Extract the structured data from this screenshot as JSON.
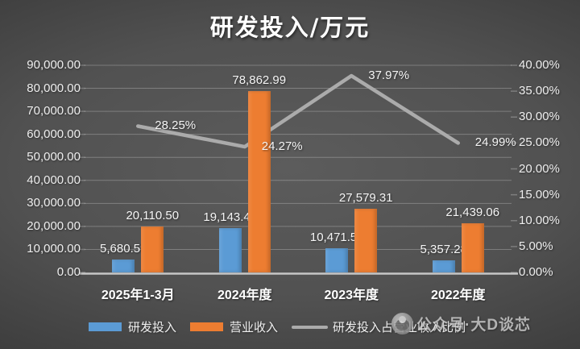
{
  "chart_data": {
    "type": "combo",
    "title": "研发投入/万元",
    "categories": [
      "2025年1-3月",
      "2024年度",
      "2023年度",
      "2022年度"
    ],
    "series": [
      {
        "name": "研发投入",
        "chart_type": "bar",
        "axis": "left",
        "color": "#5B9BD5",
        "values": [
          5680.59,
          19143.44,
          10471.57,
          5357.28
        ],
        "data_labels": [
          "5,680.59",
          "19,143.44",
          "10,471.57",
          "5,357.28"
        ]
      },
      {
        "name": "营业收入",
        "chart_type": "bar",
        "axis": "left",
        "color": "#ED7D31",
        "values": [
          20110.5,
          78862.99,
          27579.31,
          21439.06
        ],
        "data_labels": [
          "20,110.50",
          "78,862.99",
          "27,579.31",
          "21,439.06"
        ]
      },
      {
        "name": "研发投入占营业收入比例",
        "chart_type": "line",
        "axis": "right",
        "color": "#ABABAB",
        "values": [
          28.25,
          24.27,
          37.97,
          24.99
        ],
        "data_labels": [
          "28.25%",
          "24.27%",
          "37.97%",
          "24.99%"
        ]
      }
    ],
    "left_axis": {
      "min": 0,
      "max": 90000,
      "step": 10000,
      "tick_labels": [
        "0.00",
        "10,000.00",
        "20,000.00",
        "30,000.00",
        "40,000.00",
        "50,000.00",
        "60,000.00",
        "70,000.00",
        "80,000.00",
        "90,000.00"
      ]
    },
    "right_axis": {
      "min": 0,
      "max": 40,
      "step": 5,
      "tick_labels": [
        "0.00%",
        "5.00%",
        "10.00%",
        "15.00%",
        "20.00%",
        "25.00%",
        "30.00%",
        "35.00%",
        "40.00%"
      ]
    },
    "grid": true,
    "legend_position": "bottom"
  },
  "legend": {
    "items": [
      {
        "label": "研发投入",
        "color": "#5B9BD5",
        "shape": "rect"
      },
      {
        "label": "营业收入",
        "color": "#ED7D31",
        "shape": "rect"
      },
      {
        "label": "研发投入占营业收入比例",
        "color": "#ABABAB",
        "shape": "line"
      }
    ]
  },
  "watermark": {
    "text": "公众号·大D谈芯"
  },
  "colors": {
    "background_center": "#5c5c5c",
    "background_edge": "#262626",
    "bar_blue": "#5B9BD5",
    "bar_orange": "#ED7D31",
    "line_gray": "#ABABAB",
    "gridline": "rgba(255,255,255,0.25)",
    "baseline": "#C6C6C6",
    "text": "#F2F2F2"
  }
}
